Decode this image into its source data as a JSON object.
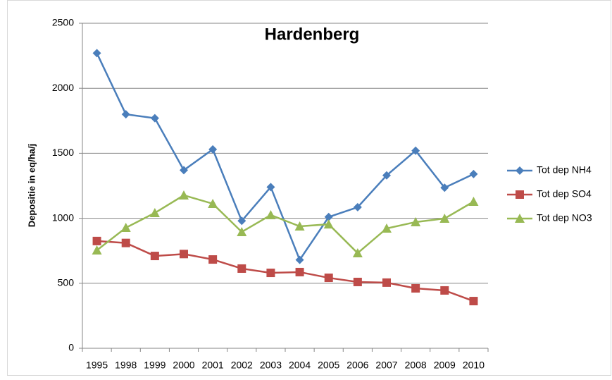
{
  "chart_data": {
    "type": "line",
    "title": "Hardenberg",
    "y_label": "Depositie in eq/ha/j",
    "categories": [
      "1995",
      "1998",
      "1999",
      "2000",
      "2001",
      "2002",
      "2003",
      "2004",
      "2005",
      "2006",
      "2007",
      "2008",
      "2009",
      "2010"
    ],
    "series": [
      {
        "name": "Tot dep NH4",
        "color": "#4a7ebb",
        "marker": "diamond",
        "values": [
          2270,
          1800,
          1770,
          1370,
          1530,
          980,
          1240,
          680,
          1010,
          1085,
          1330,
          1520,
          1235,
          1340
        ]
      },
      {
        "name": "Tot dep SO4",
        "color": "#be4b48",
        "marker": "square",
        "values": [
          825,
          810,
          710,
          725,
          683,
          613,
          580,
          586,
          542,
          510,
          505,
          461,
          445,
          363
        ]
      },
      {
        "name": "Tot dep NO3",
        "color": "#98b954",
        "marker": "triangle",
        "values": [
          754,
          927,
          1041,
          1177,
          1112,
          895,
          1025,
          938,
          954,
          732,
          922,
          971,
          998,
          1128
        ]
      }
    ],
    "ylim": [
      0,
      2500
    ],
    "yticks": [
      0,
      500,
      1000,
      1500,
      2000,
      2500
    ],
    "grid": true,
    "legend": "right"
  }
}
